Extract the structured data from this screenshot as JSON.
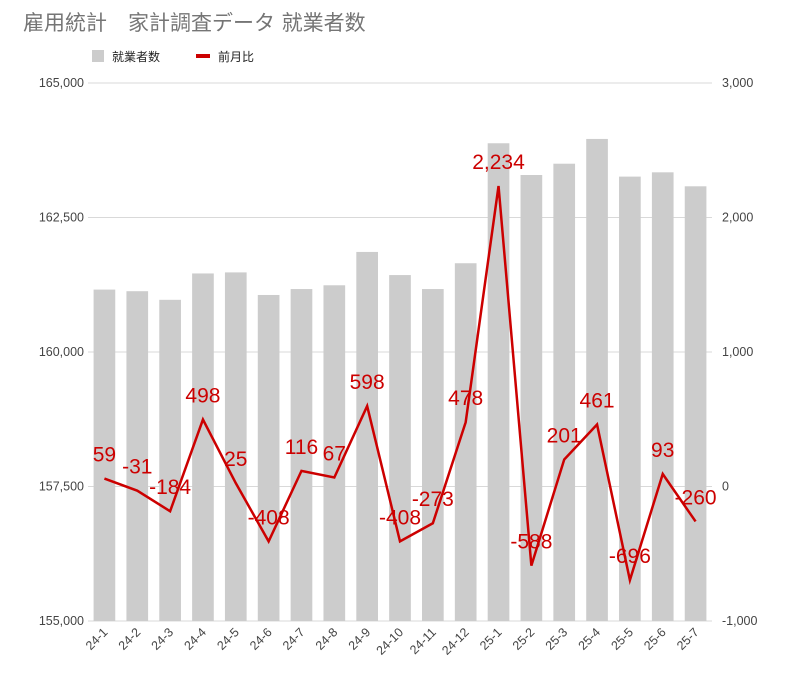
{
  "chart_data": {
    "type": "bar",
    "title": "雇用統計　家計調査データ 就業者数",
    "categories": [
      "24-1",
      "24-2",
      "24-3",
      "24-4",
      "24-5",
      "24-6",
      "24-7",
      "24-8",
      "24-9",
      "24-10",
      "24-11",
      "24-12",
      "25-1",
      "25-2",
      "25-3",
      "25-4",
      "25-5",
      "25-6",
      "25-7"
    ],
    "series": [
      {
        "name": "就業者数",
        "type": "bar",
        "axis": "left",
        "color": "#cccccc",
        "values": [
          161160,
          161130,
          160970,
          161460,
          161480,
          161060,
          161170,
          161240,
          161860,
          161430,
          161170,
          161650,
          163880,
          163290,
          163500,
          163960,
          163260,
          163340,
          163080
        ]
      },
      {
        "name": "前月比",
        "type": "line",
        "axis": "right",
        "color": "#cc0000",
        "values": [
          59,
          -31,
          -184,
          498,
          25,
          -408,
          116,
          67,
          598,
          -408,
          -273,
          478,
          2234,
          -588,
          201,
          461,
          -696,
          93,
          -260
        ],
        "labels": [
          "59",
          "-31",
          "-184",
          "498",
          "25",
          "-408",
          "116",
          "67",
          "598",
          "-408",
          "-273",
          "478",
          "2,234",
          "-588",
          "201",
          "461",
          "-696",
          "93",
          "-260"
        ]
      }
    ],
    "left_axis": {
      "min": 155000,
      "max": 165000,
      "ticks": [
        155000,
        157500,
        160000,
        162500,
        165000
      ],
      "tick_labels": [
        "155,000",
        "157,500",
        "160,000",
        "162,500",
        "165,000"
      ]
    },
    "right_axis": {
      "min": -1000,
      "max": 3000,
      "ticks": [
        -1000,
        0,
        1000,
        2000,
        3000
      ],
      "tick_labels": [
        "-1,000",
        "0",
        "1,000",
        "2,000",
        "3,000"
      ]
    },
    "grid": true,
    "legend_position": "top-left"
  }
}
